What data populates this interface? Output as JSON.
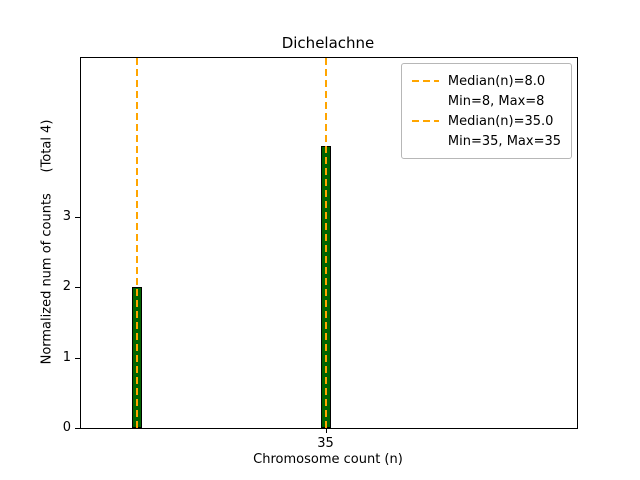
{
  "chart_data": {
    "type": "bar",
    "title": "Dichelachne",
    "xlabel": "Chromosome count (n)",
    "ylabel": "Normalized num of counts     (Total 4)",
    "x": [
      8,
      35
    ],
    "values": [
      2,
      4
    ],
    "categories": [
      "8",
      "35"
    ],
    "bar_color": "#006400",
    "line_color": "#FFA500",
    "xlim": [
      0,
      71
    ],
    "ylim": [
      0,
      5.25
    ],
    "yticks": [
      0,
      1,
      2,
      3
    ],
    "xticks": [
      35
    ],
    "grid": false,
    "legend_position": "upper right",
    "median_lines": [
      {
        "x": 8,
        "label": "Median(n)=8.0",
        "sublabel": "Min=8, Max=8"
      },
      {
        "x": 35,
        "label": "Median(n)=35.0",
        "sublabel": "Min=35, Max=35"
      }
    ]
  },
  "legend": {
    "entries": [
      {
        "marker": "dashed-line",
        "label": "Median(n)=8.0"
      },
      {
        "marker": "none",
        "label": "Min=8, Max=8"
      },
      {
        "marker": "dashed-line",
        "label": "Median(n)=35.0"
      },
      {
        "marker": "none",
        "label": "Min=35, Max=35"
      }
    ]
  }
}
